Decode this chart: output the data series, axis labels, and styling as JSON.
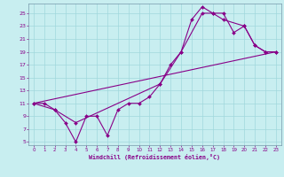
{
  "xlabel": "Windchill (Refroidissement éolien,°C)",
  "bg_color": "#c8eef0",
  "grid_color": "#a0d8dc",
  "line_color": "#880088",
  "xlim": [
    -0.5,
    23.5
  ],
  "ylim": [
    4.5,
    26.5
  ],
  "xticks": [
    0,
    1,
    2,
    3,
    4,
    5,
    6,
    7,
    8,
    9,
    10,
    11,
    12,
    13,
    14,
    15,
    16,
    17,
    18,
    19,
    20,
    21,
    22,
    23
  ],
  "yticks": [
    5,
    7,
    9,
    11,
    13,
    15,
    17,
    19,
    21,
    23,
    25
  ],
  "line1_x": [
    0,
    1,
    2,
    3,
    4,
    5,
    6,
    7,
    8,
    9,
    10,
    11,
    12,
    13,
    14,
    15,
    16,
    17,
    18,
    19,
    20,
    21,
    22,
    23
  ],
  "line1_y": [
    11,
    11,
    10,
    8,
    5,
    9,
    9,
    6,
    10,
    11,
    11,
    12,
    14,
    17,
    19,
    24,
    26,
    25,
    25,
    22,
    23,
    20,
    19,
    19
  ],
  "line2_x": [
    0,
    2,
    4,
    12,
    14,
    16,
    17,
    18,
    20,
    21,
    22,
    23
  ],
  "line2_y": [
    11,
    10,
    8,
    14,
    19,
    25,
    25,
    24,
    23,
    20,
    19,
    19
  ],
  "line3_x": [
    0,
    23
  ],
  "line3_y": [
    11,
    19
  ]
}
